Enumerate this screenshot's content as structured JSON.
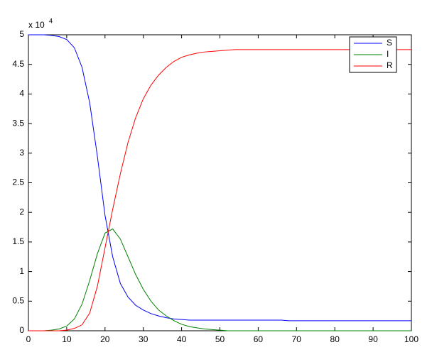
{
  "chart_data": {
    "type": "line",
    "y_scale_label": {
      "base": "x 10",
      "exponent": "4"
    },
    "x": [
      0,
      2,
      4,
      6,
      8,
      10,
      12,
      14,
      16,
      18,
      20,
      22,
      24,
      26,
      28,
      30,
      32,
      34,
      36,
      38,
      40,
      42,
      44,
      46,
      48,
      50,
      52,
      54,
      56,
      58,
      60,
      62,
      64,
      66,
      68,
      70,
      72,
      74,
      76,
      78,
      80,
      82,
      84,
      86,
      88,
      90,
      92,
      94,
      96,
      98,
      100
    ],
    "series": [
      {
        "name": "S",
        "color": "#0000ff",
        "values": [
          5.0,
          5.0,
          5.0,
          4.99,
          4.97,
          4.92,
          4.78,
          4.45,
          3.85,
          2.95,
          1.95,
          1.25,
          0.8,
          0.57,
          0.43,
          0.35,
          0.29,
          0.25,
          0.22,
          0.2,
          0.19,
          0.18,
          0.18,
          0.18,
          0.18,
          0.18,
          0.18,
          0.18,
          0.18,
          0.18,
          0.18,
          0.18,
          0.18,
          0.18,
          0.17,
          0.17,
          0.17,
          0.17,
          0.17,
          0.17,
          0.17,
          0.17,
          0.17,
          0.17,
          0.17,
          0.17,
          0.17,
          0.17,
          0.17,
          0.17,
          0.17
        ]
      },
      {
        "name": "I",
        "color": "#008000",
        "values": [
          0.0,
          0.0,
          0.0,
          0.01,
          0.03,
          0.08,
          0.2,
          0.45,
          0.85,
          1.3,
          1.65,
          1.72,
          1.55,
          1.25,
          0.95,
          0.7,
          0.5,
          0.35,
          0.25,
          0.17,
          0.11,
          0.07,
          0.05,
          0.03,
          0.02,
          0.01,
          0,
          0,
          0,
          0,
          0,
          0,
          0,
          0,
          0,
          0,
          0,
          0,
          0,
          0,
          0,
          0,
          0,
          0,
          0,
          0,
          0,
          0,
          0,
          0,
          0
        ]
      },
      {
        "name": "R",
        "color": "#ff0000",
        "values": [
          0,
          0,
          0,
          0,
          0,
          0.01,
          0.04,
          0.1,
          0.3,
          0.75,
          1.4,
          2.05,
          2.65,
          3.18,
          3.6,
          3.92,
          4.15,
          4.32,
          4.45,
          4.55,
          4.62,
          4.66,
          4.69,
          4.71,
          4.72,
          4.73,
          4.74,
          4.75,
          4.75,
          4.75,
          4.75,
          4.75,
          4.75,
          4.75,
          4.75,
          4.75,
          4.75,
          4.75,
          4.75,
          4.75,
          4.75,
          4.75,
          4.75,
          4.75,
          4.75,
          4.75,
          4.75,
          4.75,
          4.75,
          4.75,
          4.75
        ]
      }
    ],
    "xlim": [
      0,
      100
    ],
    "xticks": [
      0,
      10,
      20,
      30,
      40,
      50,
      60,
      70,
      80,
      90,
      100
    ],
    "ylim": [
      0,
      5
    ],
    "yticks": [
      0,
      0.5,
      1,
      1.5,
      2,
      2.5,
      3,
      3.5,
      4,
      4.5,
      5
    ],
    "legend": "top-right",
    "grid": false
  }
}
